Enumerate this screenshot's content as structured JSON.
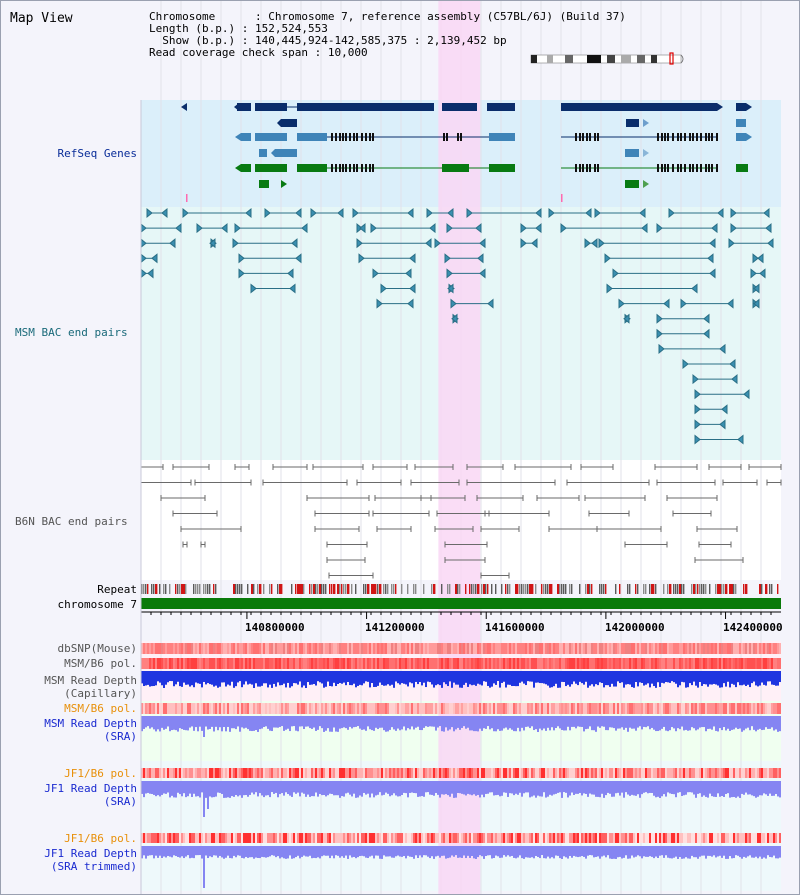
{
  "title": "Map View",
  "info": {
    "chromosome_key": "Chromosome",
    "chromosome_val": "Chromosome 7, reference assembly (C57BL/6J) (Build 37)",
    "length_key": "Length (b.p.)",
    "length_val": "152,524,553",
    "show_key": "Show (b.p.)",
    "show_val": "140,445,924-142,585,375 : 2,139,452 bp",
    "coverage_key": "Read coverage check span",
    "coverage_val": "10,000"
  },
  "view": {
    "start_bp": 140445924,
    "end_bp": 142585375
  },
  "highlight": {
    "start_bp": 141440000,
    "end_bp": 141580000
  },
  "axis": {
    "ticks": [
      "140800000",
      "141200000",
      "141600000",
      "142000000",
      "142400000"
    ]
  },
  "colors": {
    "refseq_bg": "#dbeffa",
    "msm_bac_bg": "#e6f7f7",
    "b6n_bg": "#ffffff",
    "highlight": "#f9d7f5",
    "gene_dark": "#0a2d6b",
    "gene_mid": "#3f84b8",
    "gene_green": "#087a12",
    "chromosome_bar": "#0a7a0a",
    "msm_pair": "#2a6f86",
    "b6n_pair": "#6a6a6a",
    "depth_capillary": "#1f35e0",
    "depth_sra": "#8585f2"
  },
  "tracks": {
    "refseq": "RefSeq Genes",
    "msm_bac": "MSM BAC end pairs",
    "b6n_bac": "B6N BAC end pairs",
    "repeat": "Repeat",
    "chromosome": "chromosome 7",
    "dbsnp": "dbSNP(Mouse)",
    "msm_b6_pol": "MSM/B6 pol.",
    "msm_depth_cap_1": "MSM Read Depth",
    "msm_depth_cap_2": "(Capillary)",
    "msm_b6_pol_2": "MSM/B6 pol.",
    "msm_depth_sra_1": "MSM Read Depth",
    "msm_depth_sra_2": "(SRA)",
    "jf1_pol_1": "JF1/B6 pol.",
    "jf1_depth_sra_1": "JF1 Read Depth",
    "jf1_depth_sra_2": "(SRA)",
    "jf1_pol_2": "JF1/B6 pol.",
    "jf1_depth_trim_1": "JF1 Read Depth",
    "jf1_depth_trim_2": "(SRA trimmed)"
  }
}
